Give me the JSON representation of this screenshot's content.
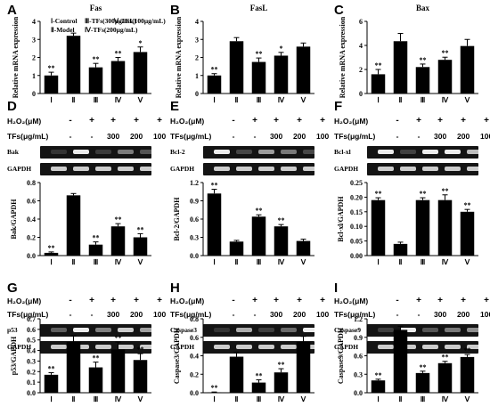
{
  "figure": {
    "treatment_labels": {
      "h2o2": "H₂O₂(μM)",
      "tfs": "TFs(μg/mL)",
      "tfs_values": [
        "300",
        "200",
        "100"
      ],
      "minus": "-",
      "plus": "+"
    },
    "legend": {
      "col1": [
        "Ⅰ-Control",
        "Ⅱ-Model"
      ],
      "col2": [
        "Ⅲ-TFs(300μg/mL)",
        "Ⅳ-TFs(200μg/mL)"
      ],
      "col3": "Ⅴ-TFs(100μg/mL)"
    },
    "colors": {
      "bar": "#000000",
      "gel_background": "#141414",
      "band": "#ececec"
    }
  },
  "chart_data": [
    {
      "panel": "A",
      "type": "bar",
      "title": "Fas",
      "ylabel": "Relative mRNA expression",
      "categories": [
        "Ⅰ",
        "Ⅱ",
        "Ⅲ",
        "Ⅳ",
        "Ⅴ"
      ],
      "values": [
        1.0,
        3.2,
        1.45,
        1.8,
        2.3
      ],
      "errors": [
        0.18,
        0.15,
        0.22,
        0.2,
        0.28
      ],
      "significance": [
        "**",
        "",
        "**",
        "**",
        "*"
      ],
      "ylim": [
        0,
        4
      ],
      "yticks": [
        "0",
        "1",
        "2",
        "3",
        "4"
      ],
      "ytick_values": [
        0,
        1,
        2,
        3,
        4
      ]
    },
    {
      "panel": "B",
      "type": "bar",
      "title": "FasL",
      "ylabel": "Relative mRNA expression",
      "categories": [
        "Ⅰ",
        "Ⅱ",
        "Ⅲ",
        "Ⅳ",
        "Ⅴ"
      ],
      "values": [
        1.0,
        2.9,
        1.75,
        2.1,
        2.6
      ],
      "errors": [
        0.1,
        0.2,
        0.22,
        0.18,
        0.2
      ],
      "significance": [
        "**",
        "",
        "**",
        "*",
        ""
      ],
      "ylim": [
        0,
        4
      ],
      "yticks": [
        "0",
        "1",
        "2",
        "3",
        "4"
      ],
      "ytick_values": [
        0,
        1,
        2,
        3,
        4
      ]
    },
    {
      "panel": "C",
      "type": "bar",
      "title": "Bax",
      "ylabel": "Relative mRNA expression",
      "categories": [
        "Ⅰ",
        "Ⅱ",
        "Ⅲ",
        "Ⅳ",
        "Ⅴ"
      ],
      "values": [
        1.6,
        4.35,
        2.2,
        2.8,
        3.95
      ],
      "errors": [
        0.4,
        0.65,
        0.25,
        0.22,
        0.55
      ],
      "significance": [
        "**",
        "",
        "**",
        "**",
        ""
      ],
      "ylim": [
        0,
        6
      ],
      "yticks": [
        "0",
        "2",
        "4",
        "6"
      ],
      "ytick_values": [
        0,
        2,
        4,
        6
      ]
    },
    {
      "panel": "D",
      "type": "bar",
      "ylabel": "Bak/GAPDH",
      "band": "Bak",
      "categories": [
        "Ⅰ",
        "Ⅱ",
        "Ⅲ",
        "Ⅳ",
        "Ⅴ"
      ],
      "values": [
        0.03,
        0.66,
        0.12,
        0.32,
        0.2
      ],
      "errors": [
        0.01,
        0.02,
        0.03,
        0.03,
        0.04
      ],
      "significance": [
        "**",
        "",
        "**",
        "**",
        "**"
      ],
      "ylim": [
        0,
        0.8
      ],
      "yticks": [
        "0.0",
        "0.2",
        "0.4",
        "0.6",
        "0.8"
      ],
      "ytick_values": [
        0,
        0.2,
        0.4,
        0.6,
        0.8
      ]
    },
    {
      "panel": "E",
      "type": "bar",
      "ylabel": "Bcl-2/GAPDH",
      "band": "Bcl-2",
      "categories": [
        "Ⅰ",
        "Ⅱ",
        "Ⅲ",
        "Ⅳ",
        "Ⅴ"
      ],
      "values": [
        1.02,
        0.23,
        0.64,
        0.48,
        0.24
      ],
      "errors": [
        0.07,
        0.02,
        0.03,
        0.03,
        0.03
      ],
      "significance": [
        "**",
        "",
        "**",
        "**",
        ""
      ],
      "ylim": [
        0,
        1.2
      ],
      "yticks": [
        "0.0",
        "0.3",
        "0.6",
        "0.9",
        "1.2"
      ],
      "ytick_values": [
        0,
        0.3,
        0.6,
        0.9,
        1.2
      ]
    },
    {
      "panel": "F",
      "type": "bar",
      "ylabel": "Bcl-xl/GAPDH",
      "band": "Bcl-xl",
      "categories": [
        "Ⅰ",
        "Ⅱ",
        "Ⅲ",
        "Ⅳ",
        "Ⅴ"
      ],
      "values": [
        0.19,
        0.04,
        0.19,
        0.19,
        0.15
      ],
      "errors": [
        0.008,
        0.006,
        0.008,
        0.018,
        0.008
      ],
      "significance": [
        "**",
        "",
        "**",
        "**",
        "**"
      ],
      "ylim": [
        0,
        0.25
      ],
      "yticks": [
        "0.00",
        "0.05",
        "0.10",
        "0.15",
        "0.20",
        "0.25"
      ],
      "ytick_values": [
        0,
        0.05,
        0.1,
        0.15,
        0.2,
        0.25
      ]
    },
    {
      "panel": "G",
      "type": "bar",
      "ylabel": "p53/GAPDH",
      "band": "p53",
      "categories": [
        "Ⅰ",
        "Ⅱ",
        "Ⅲ",
        "Ⅳ",
        "Ⅴ"
      ],
      "values": [
        0.17,
        0.48,
        0.24,
        0.41,
        0.31
      ],
      "errors": [
        0.02,
        0.06,
        0.05,
        0.07,
        0.06
      ],
      "significance": [
        "**",
        "",
        "**",
        "**",
        "**"
      ],
      "ylim": [
        0,
        0.7
      ],
      "yticks": [
        "0.0",
        "0.1",
        "0.2",
        "0.3",
        "0.4",
        "0.5",
        "0.6",
        "0.7"
      ],
      "ytick_values": [
        0,
        0.1,
        0.2,
        0.3,
        0.4,
        0.5,
        0.6,
        0.7
      ]
    },
    {
      "panel": "H",
      "type": "bar",
      "ylabel": "Caspase3/GAPDH",
      "band": "Caspase3",
      "categories": [
        "Ⅰ",
        "Ⅱ",
        "Ⅲ",
        "Ⅳ",
        "Ⅴ"
      ],
      "values": [
        0.005,
        0.39,
        0.11,
        0.22,
        0.55
      ],
      "errors": [
        0.003,
        0.05,
        0.03,
        0.04,
        0.06
      ],
      "significance": [
        "**",
        "",
        "**",
        "**",
        ""
      ],
      "ylim": [
        0,
        0.8
      ],
      "yticks": [
        "0.0",
        "0.2",
        "0.4",
        "0.6",
        "0.8"
      ],
      "ytick_values": [
        0,
        0.2,
        0.4,
        0.6,
        0.8
      ]
    },
    {
      "panel": "I",
      "type": "bar",
      "ylabel": "Caspase9/GAPDH",
      "band": "Caspase9",
      "categories": [
        "Ⅰ",
        "Ⅱ",
        "Ⅲ",
        "Ⅳ",
        "Ⅴ"
      ],
      "values": [
        0.2,
        1.02,
        0.32,
        0.48,
        0.58
      ],
      "errors": [
        0.02,
        0.06,
        0.03,
        0.03,
        0.04
      ],
      "significance": [
        "**",
        "",
        "**",
        "**",
        "**"
      ],
      "ylim": [
        0,
        1.2
      ],
      "yticks": [
        "0.0",
        "0.3",
        "0.6",
        "0.9",
        "1.2"
      ],
      "ytick_values": [
        0,
        0.3,
        0.6,
        0.9,
        1.2
      ]
    }
  ],
  "gapdh_label": "GAPDH"
}
